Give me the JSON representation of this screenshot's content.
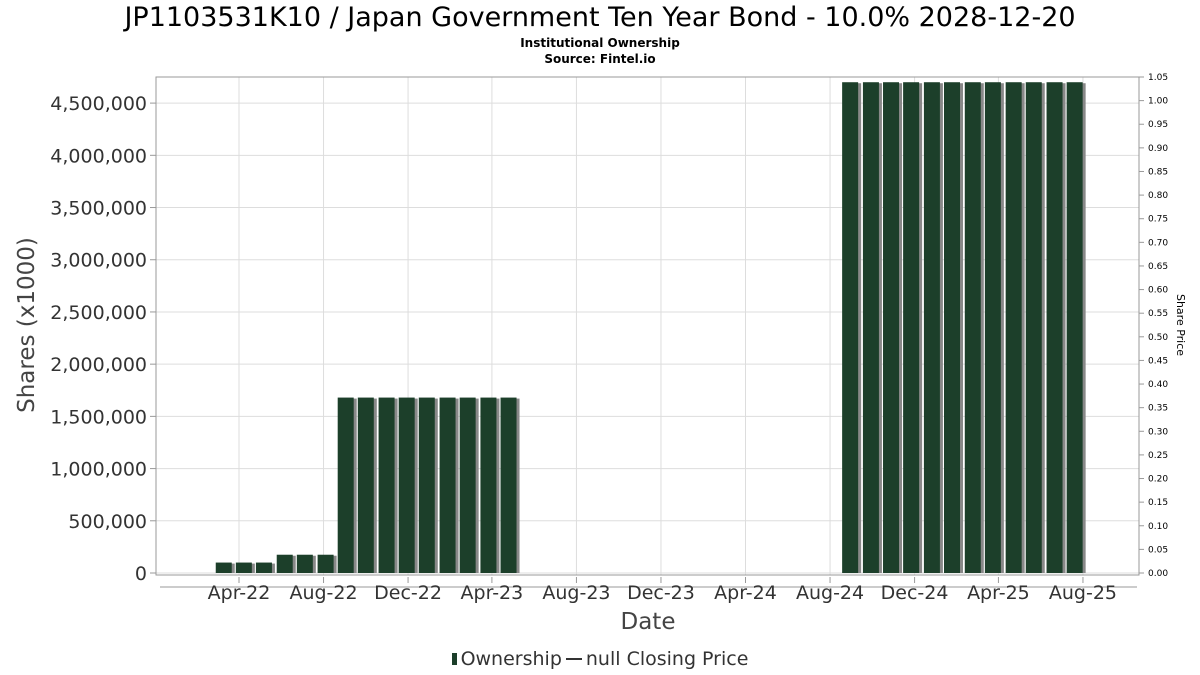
{
  "header": {
    "title": "JP1103531K10 / Japan Government Ten Year Bond - 10.0% 2028-12-20",
    "subtitle": "Institutional Ownership",
    "source": "Source: Fintel.io"
  },
  "legend": {
    "ownership_label": "Ownership",
    "price_label": "null Closing Price"
  },
  "colors": {
    "bar": "#1c3f2a",
    "bar_shadow": "#888888",
    "grid": "#dddddd",
    "axis": "#999999"
  },
  "chart_data": {
    "type": "bar",
    "xlabel": "Date",
    "ylabel": "Shares (x1000)",
    "y2label": "Share Price",
    "ylim": [
      0,
      4750000
    ],
    "y2lim": [
      0,
      1.05
    ],
    "yticks": [
      0,
      500000,
      1000000,
      1500000,
      2000000,
      2500000,
      3000000,
      3500000,
      4000000,
      4500000
    ],
    "ytick_labels": [
      "0",
      "500,000",
      "1,000,000",
      "1,500,000",
      "2,000,000",
      "2,500,000",
      "3,000,000",
      "3,500,000",
      "4,000,000",
      "4,500,000"
    ],
    "y2ticks": [
      0,
      0.05,
      0.1,
      0.15,
      0.2,
      0.25,
      0.3,
      0.35,
      0.4,
      0.45,
      0.5,
      0.55,
      0.6,
      0.65,
      0.7,
      0.75,
      0.8,
      0.85,
      0.9,
      0.95,
      1.0,
      1.05
    ],
    "y2tick_labels": [
      "0.00",
      "0.05",
      "0.10",
      "0.15",
      "0.20",
      "0.25",
      "0.30",
      "0.35",
      "0.40",
      "0.45",
      "0.50",
      "0.55",
      "0.60",
      "0.65",
      "0.70",
      "0.75",
      "0.80",
      "0.85",
      "0.90",
      "0.95",
      "1.00",
      "1.05"
    ],
    "xrange": [
      "2021-12-08",
      "2025-10-18"
    ],
    "xticks": [
      "2022-04-01",
      "2022-08-01",
      "2022-12-01",
      "2023-04-01",
      "2023-08-01",
      "2023-12-01",
      "2024-04-01",
      "2024-08-01",
      "2024-12-01",
      "2025-04-01",
      "2025-08-01"
    ],
    "xtick_labels": [
      "Apr-22",
      "Aug-22",
      "Dec-22",
      "Apr-23",
      "Aug-23",
      "Dec-23",
      "Apr-24",
      "Aug-24",
      "Dec-24",
      "Apr-25",
      "Aug-25"
    ],
    "grid": true,
    "legend_position": "bottom",
    "series": [
      {
        "name": "Ownership",
        "points": [
          {
            "date": "2022-03-10",
            "value": 100000
          },
          {
            "date": "2022-04-08",
            "value": 100000
          },
          {
            "date": "2022-05-07",
            "value": 100000
          },
          {
            "date": "2022-06-06",
            "value": 175000
          },
          {
            "date": "2022-07-05",
            "value": 175000
          },
          {
            "date": "2022-08-04",
            "value": 175000
          },
          {
            "date": "2022-09-02",
            "value": 1680000
          },
          {
            "date": "2022-10-01",
            "value": 1680000
          },
          {
            "date": "2022-10-31",
            "value": 1680000
          },
          {
            "date": "2022-11-29",
            "value": 1680000
          },
          {
            "date": "2022-12-28",
            "value": 1680000
          },
          {
            "date": "2023-01-27",
            "value": 1680000
          },
          {
            "date": "2023-02-25",
            "value": 1680000
          },
          {
            "date": "2023-03-27",
            "value": 1680000
          },
          {
            "date": "2023-04-25",
            "value": 1680000
          },
          {
            "date": "2024-08-30",
            "value": 4700000
          },
          {
            "date": "2024-09-29",
            "value": 4700000
          },
          {
            "date": "2024-10-28",
            "value": 4700000
          },
          {
            "date": "2024-11-26",
            "value": 4700000
          },
          {
            "date": "2024-12-26",
            "value": 4700000
          },
          {
            "date": "2025-01-24",
            "value": 4700000
          },
          {
            "date": "2025-02-23",
            "value": 4700000
          },
          {
            "date": "2025-03-24",
            "value": 4700000
          },
          {
            "date": "2025-04-23",
            "value": 4700000
          },
          {
            "date": "2025-05-22",
            "value": 4700000
          },
          {
            "date": "2025-06-21",
            "value": 4700000
          },
          {
            "date": "2025-07-20",
            "value": 4700000
          }
        ]
      }
    ]
  }
}
